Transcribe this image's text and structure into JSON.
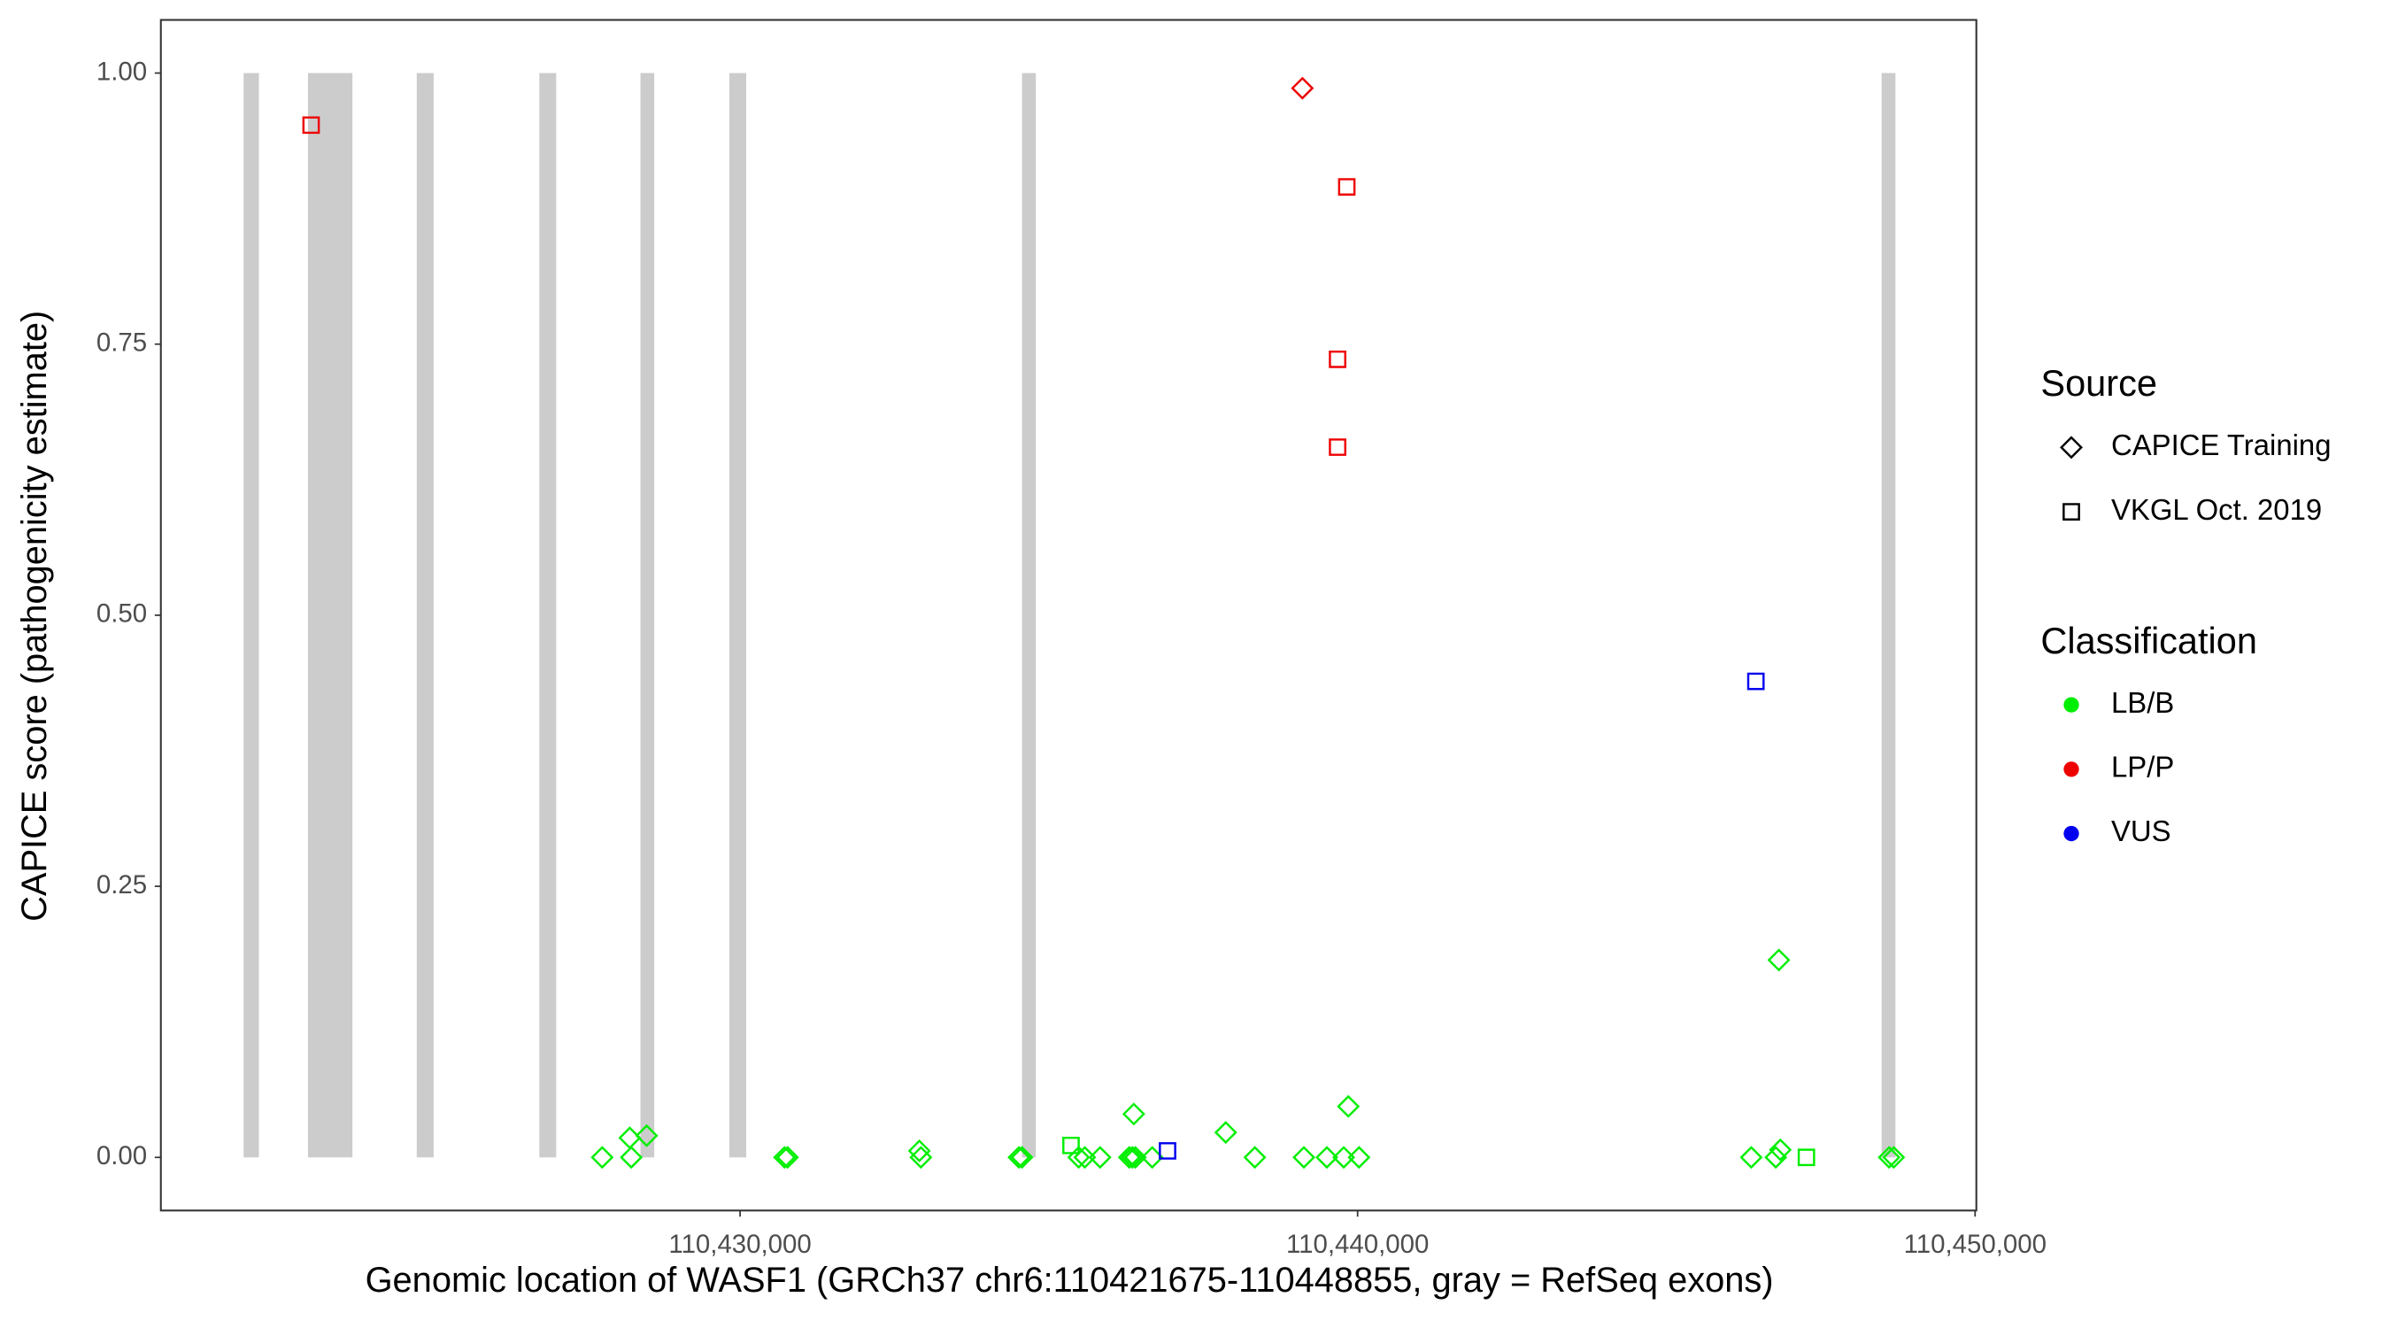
{
  "chart_data": {
    "type": "scatter",
    "x_label": "Genomic location of WASF1 (GRCh37 chr6:110421675-110448855, gray = RefSeq exons)",
    "y_label": "CAPICE score (pathogenicity estimate)",
    "xlim": [
      110420620,
      110450020
    ],
    "ylim": [
      -0.049,
      1.049
    ],
    "xticks": [
      {
        "value": 110430000,
        "label": "110,430,000"
      },
      {
        "value": 110440000,
        "label": "110,440,000"
      },
      {
        "value": 110450000,
        "label": "110,450,000"
      }
    ],
    "yticks": [
      {
        "value": 0,
        "label": "0.00"
      },
      {
        "value": 0.25,
        "label": "0.25"
      },
      {
        "value": 0.5,
        "label": "0.50"
      },
      {
        "value": 0.75,
        "label": "0.75"
      },
      {
        "value": 1,
        "label": "1.00"
      }
    ],
    "grid": false,
    "exon_color": "#cccccc",
    "exons": [
      [
        110421960,
        110422208
      ],
      [
        110423002,
        110423722
      ],
      [
        110424764,
        110425037
      ],
      [
        110426749,
        110427022
      ],
      [
        110428387,
        110428610
      ],
      [
        110429826,
        110430099
      ],
      [
        110434566,
        110434789
      ],
      [
        110448486,
        110448710
      ]
    ],
    "source_legend": {
      "title": "Source",
      "entries": [
        {
          "name": "CAPICE Training",
          "shape": "diamond"
        },
        {
          "name": "VKGL Oct. 2019",
          "shape": "square"
        }
      ]
    },
    "class_legend": {
      "title": "Classification",
      "entries": [
        {
          "name": "LB/B",
          "color": "#00ee00"
        },
        {
          "name": "LP/P",
          "color": "#ee0000"
        },
        {
          "name": "VUS",
          "color": "#0000ee"
        }
      ]
    },
    "series": [
      {
        "source": "CAPICE Training",
        "classification": "LB/B",
        "x": [
          110427767,
          110428214,
          110428238,
          110428487,
          110430719,
          110430769,
          110432903,
          110432928,
          110434515,
          110434565,
          110435483,
          110435582,
          110435830,
          110436376,
          110436302,
          110436351,
          110436401,
          110436674,
          110437865,
          110438336,
          110439130,
          110439502,
          110439775,
          110439850,
          110440023,
          110446375,
          110446772,
          110446846,
          110446822,
          110448608,
          110448682
        ],
        "y": [
          0,
          0.018,
          0,
          0.02,
          0,
          0,
          0.006,
          0,
          0,
          0,
          0,
          0,
          0,
          0.04,
          0,
          0,
          0,
          0,
          0.023,
          0,
          0,
          0,
          0,
          0.047,
          0,
          0,
          0,
          0.007,
          0.182,
          0,
          0
        ]
      },
      {
        "source": "VKGL Oct. 2019",
        "classification": "LB/B",
        "x": [
          110435359,
          110447268
        ],
        "y": [
          0.011,
          0
        ]
      },
      {
        "source": "CAPICE Training",
        "classification": "LP/P",
        "x": [
          110439106
        ],
        "y": [
          0.986
        ]
      },
      {
        "source": "VKGL Oct. 2019",
        "classification": "LP/P",
        "x": [
          110423053,
          110439825,
          110439676,
          110439676
        ],
        "y": [
          0.952,
          0.895,
          0.736,
          0.655
        ]
      },
      {
        "source": "VKGL Oct. 2019",
        "classification": "VUS",
        "x": [
          110446450,
          110436922
        ],
        "y": [
          0.439,
          0.006
        ]
      }
    ]
  }
}
